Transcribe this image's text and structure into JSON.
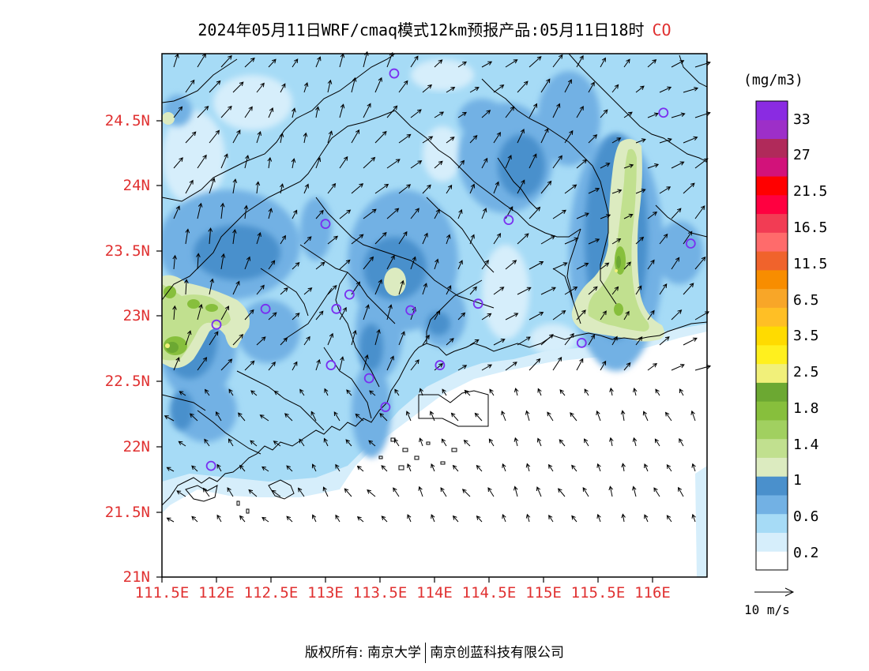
{
  "title": {
    "text": "2024年05月11日WRF/cmaq模式12km预报产品:05月11日18时",
    "species": "CO"
  },
  "axes": {
    "lat_labels": [
      "24.5N",
      "24N",
      "23.5N",
      "23N",
      "22.5N",
      "22N",
      "21.5N",
      "21N"
    ],
    "lon_labels": [
      "111.5E",
      "112E",
      "112.5E",
      "113E",
      "113.5E",
      "114E",
      "114.5E",
      "115E",
      "115.5E",
      "116E"
    ]
  },
  "colorbar": {
    "unit": "(mg/m3)",
    "labels": [
      "0.2",
      "0.6",
      "1",
      "1.4",
      "1.8",
      "2.5",
      "3.5",
      "6.5",
      "11.5",
      "16.5",
      "21.5",
      "27",
      "33"
    ],
    "colors": [
      "#ffffff",
      "#d6eefb",
      "#a6dbf6",
      "#72b1e4",
      "#4a90cc",
      "#dcebc0",
      "#c1e08f",
      "#a1d060",
      "#87bf3c",
      "#6ca832",
      "#f1f07a",
      "#fff01e",
      "#ffdb00",
      "#ffbf25",
      "#f8a628",
      "#f88d00",
      "#f0632c",
      "#ff6b6b",
      "#f23c54",
      "#ff0040",
      "#ff0000",
      "#d2127a",
      "#b02a5a",
      "#9d2fc8",
      "#8a2be2"
    ]
  },
  "vector_legend": {
    "label": "10 m/s"
  },
  "footer": {
    "left": "版权所有: 南京大学",
    "right": "南京创蓝科技有限公司"
  },
  "stations": [
    {
      "lon": 111.95,
      "lat": 21.85
    },
    {
      "lon": 112.0,
      "lat": 22.93
    },
    {
      "lon": 112.45,
      "lat": 23.05
    },
    {
      "lon": 113.0,
      "lat": 23.7
    },
    {
      "lon": 113.1,
      "lat": 23.05
    },
    {
      "lon": 113.22,
      "lat": 23.16
    },
    {
      "lon": 113.05,
      "lat": 22.62
    },
    {
      "lon": 113.4,
      "lat": 22.52
    },
    {
      "lon": 113.55,
      "lat": 22.3
    },
    {
      "lon": 113.78,
      "lat": 23.04
    },
    {
      "lon": 114.05,
      "lat": 22.62
    },
    {
      "lon": 114.4,
      "lat": 23.09
    },
    {
      "lon": 114.68,
      "lat": 23.73
    },
    {
      "lon": 113.63,
      "lat": 24.85
    },
    {
      "lon": 116.1,
      "lat": 24.55
    },
    {
      "lon": 116.35,
      "lat": 23.55
    },
    {
      "lon": 115.35,
      "lat": 22.79
    }
  ]
}
